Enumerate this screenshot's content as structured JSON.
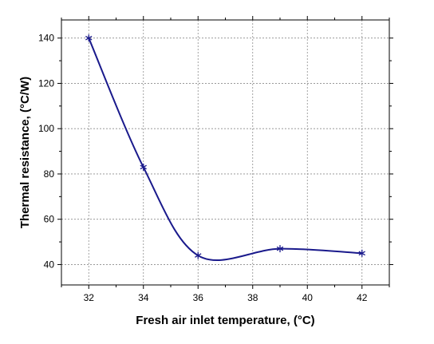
{
  "chart_data": {
    "type": "line",
    "title": "",
    "xlabel": "Fresh air inlet temperature, (°C)",
    "ylabel": "Thermal resistance, (°C/W)",
    "xlim": [
      31,
      43
    ],
    "ylim": [
      31,
      148
    ],
    "xticks": [
      32,
      34,
      36,
      38,
      40,
      42
    ],
    "yticks": [
      40,
      60,
      80,
      100,
      120,
      140
    ],
    "minor_ticks": true,
    "grid": true,
    "legend": "none",
    "line_style": "smooth",
    "marker": "asterisk",
    "color": "#1a1a8c",
    "series": [
      {
        "x": [
          32,
          34,
          36,
          39,
          42
        ],
        "values": [
          140,
          83,
          44,
          47,
          45
        ]
      }
    ]
  }
}
